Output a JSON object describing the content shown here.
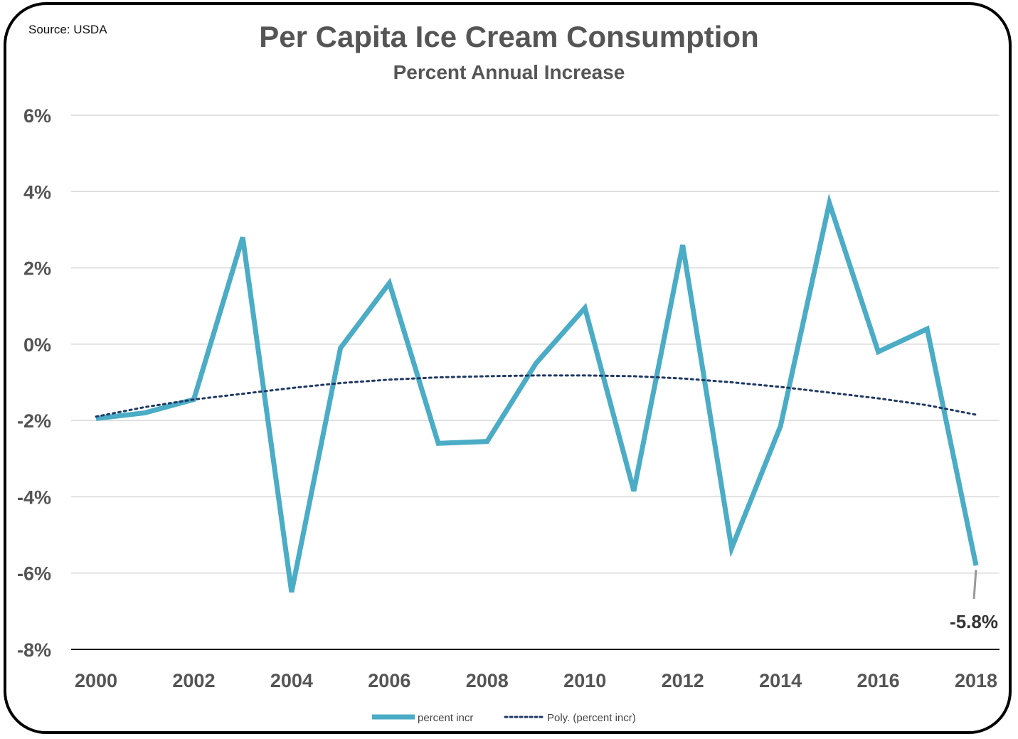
{
  "source": "Source: USDA",
  "chart_data": {
    "type": "line",
    "title": "Per Capita Ice Cream Consumption",
    "subtitle": "Percent Annual Increase",
    "x": [
      2000,
      2001,
      2002,
      2003,
      2004,
      2005,
      2006,
      2007,
      2008,
      2009,
      2010,
      2011,
      2012,
      2013,
      2014,
      2015,
      2016,
      2017,
      2018
    ],
    "series": [
      {
        "name": "percent incr",
        "color": "#4bacc6",
        "values": [
          -1.95,
          -1.8,
          -1.45,
          2.8,
          -6.5,
          -0.1,
          1.6,
          -2.6,
          -2.55,
          -0.5,
          0.95,
          -3.85,
          2.6,
          -5.35,
          -2.15,
          3.7,
          -0.2,
          0.4,
          -5.8
        ]
      },
      {
        "name": "Poly. (percent incr)",
        "color": "#1f3864",
        "style": "dotted",
        "values": [
          -1.9,
          -1.65,
          -1.45,
          -1.3,
          -1.15,
          -1.02,
          -0.93,
          -0.87,
          -0.84,
          -0.82,
          -0.82,
          -0.84,
          -0.9,
          -1.0,
          -1.12,
          -1.27,
          -1.42,
          -1.6,
          -1.85
        ]
      }
    ],
    "xticks": [
      "2000",
      "2002",
      "2004",
      "2006",
      "2008",
      "2010",
      "2012",
      "2014",
      "2016",
      "2018"
    ],
    "yticks": [
      "6%",
      "4%",
      "2%",
      "0%",
      "-2%",
      "-4%",
      "-6%",
      "-8%"
    ],
    "ylim": [
      -8,
      6
    ],
    "xlim": [
      2000,
      2018
    ],
    "grid": true,
    "legend": "bottom-center",
    "annotation": {
      "x": 2018,
      "y": -5.8,
      "text": "-5.8%"
    }
  }
}
